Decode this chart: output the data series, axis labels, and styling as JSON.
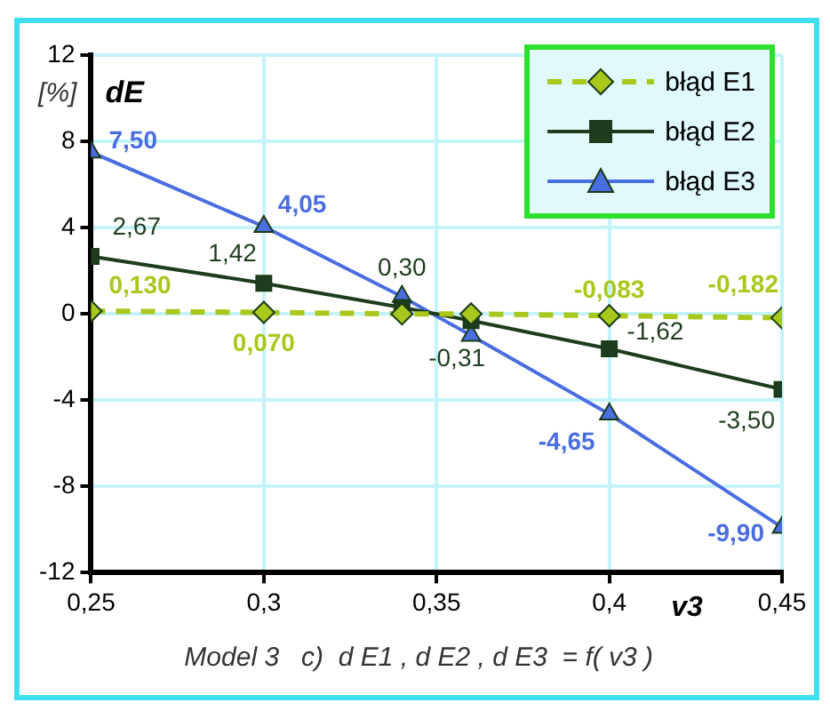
{
  "chart_data": {
    "type": "line",
    "ylabel": "dE",
    "xlabel": "v3",
    "annotations": [
      "[%]",
      "Model 3   c)  d E1 , d E2 , d E3  = f( v3 )"
    ],
    "x": [
      0.25,
      0.3,
      0.34,
      0.36,
      0.4,
      0.45
    ],
    "xlim": [
      0.25,
      0.45
    ],
    "xticks": [
      {
        "value": 0.25,
        "label": "0,25"
      },
      {
        "value": 0.3,
        "label": "0,3"
      },
      {
        "value": 0.35,
        "label": "0,35"
      },
      {
        "value": 0.4,
        "label": "0,4"
      },
      {
        "value": 0.45,
        "label": "0,45"
      }
    ],
    "ylim": [
      -12,
      12
    ],
    "yticks": [
      -12,
      -8,
      -4,
      0,
      4,
      8,
      12
    ],
    "grid": true,
    "legend": "top right",
    "series": [
      {
        "name": "błąd E1",
        "color": "#a8c81c",
        "marker": "diamond",
        "line_style": "dashed",
        "values": [
          0.13,
          0.07,
          0,
          0,
          -0.083,
          -0.182
        ],
        "value_labels": [
          "0,130",
          "0,070",
          null,
          null,
          "-0,083",
          "-0,182"
        ]
      },
      {
        "name": "błąd E2",
        "color": "#1e3c1e",
        "marker": "square",
        "line_style": "solid",
        "values": [
          2.67,
          1.42,
          0.3,
          -0.31,
          -1.62,
          -3.5
        ],
        "value_labels": [
          "2,67",
          "1,42",
          "0,30",
          "-0,31",
          "-1,62",
          "-3,50"
        ]
      },
      {
        "name": "błąd E3",
        "color": "#4a6ee0",
        "marker": "triangle",
        "line_style": "solid",
        "values": [
          7.5,
          4.05,
          0.8,
          -1.0,
          -4.65,
          -9.9
        ],
        "value_labels": [
          "7,50",
          "4,05",
          null,
          null,
          "-4,65",
          "-9,90"
        ]
      }
    ]
  }
}
